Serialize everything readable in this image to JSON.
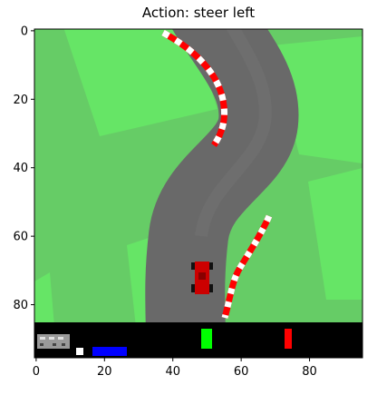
{
  "title": "Action: steer left",
  "x_ticks": [
    "0",
    "20",
    "40",
    "60",
    "80"
  ],
  "y_ticks": [
    "0",
    "20",
    "40",
    "60",
    "80"
  ],
  "x_tick_values": [
    0,
    20,
    40,
    60,
    80
  ],
  "y_tick_values": [
    0,
    20,
    40,
    60,
    80
  ],
  "axis_range": {
    "x": [
      -0.5,
      95.5
    ],
    "y": [
      95.5,
      -0.5
    ]
  },
  "colors": {
    "grass": "#66cc66",
    "grass_patch": "#66e566",
    "track": "#696969",
    "track_light": "#6e6e6e",
    "curb_red": "#ff0000",
    "curb_white": "#ffffff",
    "car": "#cc0000",
    "hud": "#000000",
    "hud_speed": "#0000ff",
    "hud_green": "#00ff00",
    "hud_red": "#ff0000"
  },
  "car": {
    "name": "player-car",
    "icon": "race-car-icon"
  }
}
